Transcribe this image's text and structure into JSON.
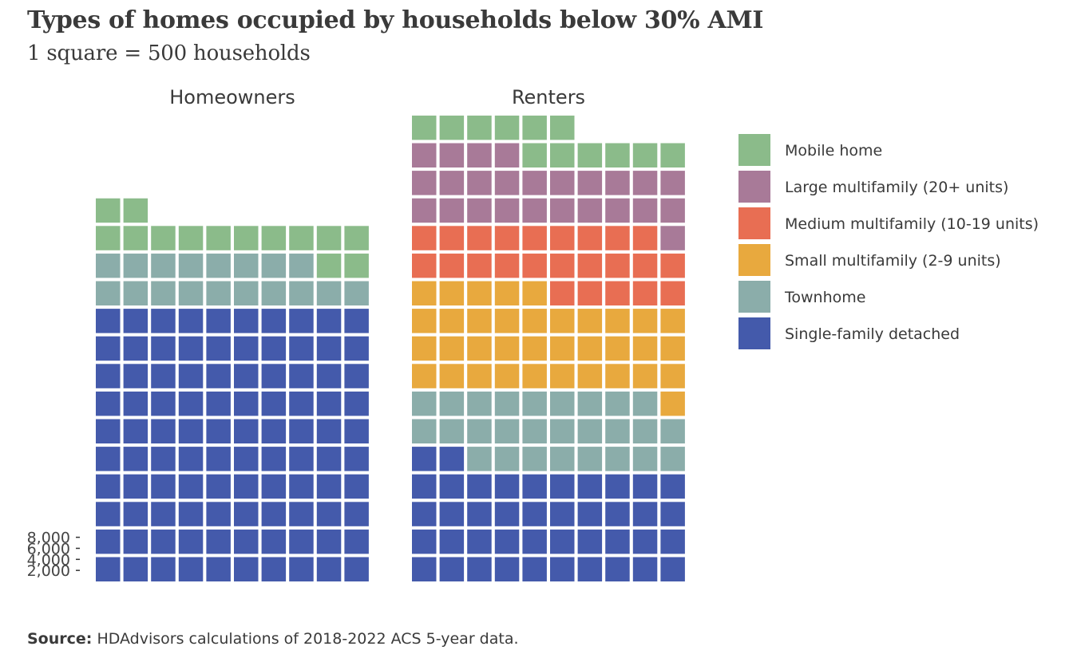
{
  "title": "Types of homes occupied by households below 30% AMI",
  "subtitle": "1 square = 500 households",
  "source_label": "Source:",
  "source_text": "HDAdvisors calculations of 2018-2022 ACS 5-year data.",
  "chart_data": {
    "type": "waffle",
    "unit": 500,
    "columns": 10,
    "y_ticks": [
      2000,
      4000,
      6000,
      8000
    ],
    "y_tick_labels": [
      "2,000",
      "4,000",
      "6,000",
      "8,000"
    ],
    "categories": [
      {
        "key": "sfd",
        "name": "Single-family detached",
        "color": "#445AAB"
      },
      {
        "key": "townhome",
        "name": "Townhome",
        "color": "#8BADAA"
      },
      {
        "key": "small",
        "name": "Small multifamily (2-9 units)",
        "color": "#E8A93E"
      },
      {
        "key": "medium",
        "name": "Medium multifamily (10-19 units)",
        "color": "#E86E53"
      },
      {
        "key": "large",
        "name": "Large multifamily (20+ units)",
        "color": "#A87A98"
      },
      {
        "key": "mobile",
        "name": "Mobile home",
        "color": "#8BBB8A"
      }
    ],
    "legend_order": [
      "mobile",
      "large",
      "medium",
      "small",
      "townhome",
      "sfd"
    ],
    "facets": [
      {
        "name": "Homeowners",
        "squares": {
          "sfd": 100,
          "townhome": 18,
          "small": 0,
          "medium": 0,
          "large": 0,
          "mobile": 14
        }
      },
      {
        "name": "Renters",
        "squares": {
          "sfd": 42,
          "townhome": 27,
          "small": 36,
          "medium": 24,
          "large": 25,
          "mobile": 12
        }
      }
    ]
  }
}
